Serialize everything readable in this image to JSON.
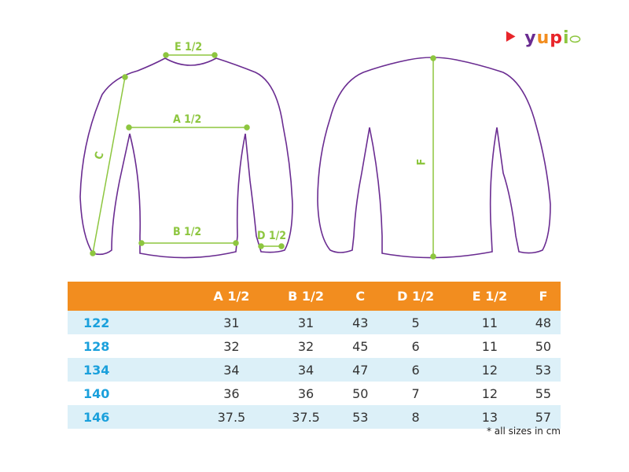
{
  "brand": {
    "logo_text": "yupi",
    "colors": {
      "outline": "#6a2c91",
      "measure": "#8dc63f",
      "header": "#f28d1f",
      "size": "#1aa0dc",
      "row_alt": "#dcf0f8"
    }
  },
  "diagram_labels": {
    "e": "E 1/2",
    "a": "A 1/2",
    "c": "C",
    "b": "B 1/2",
    "d": "D 1/2",
    "f": "F"
  },
  "table": {
    "headers": [
      "",
      "A 1/2",
      "B 1/2",
      "C",
      "D 1/2",
      "E 1/2",
      "F"
    ],
    "rows": [
      {
        "size": "122",
        "values": [
          "31",
          "31",
          "43",
          "5",
          "11",
          "48"
        ]
      },
      {
        "size": "128",
        "values": [
          "32",
          "32",
          "45",
          "6",
          "11",
          "50"
        ]
      },
      {
        "size": "134",
        "values": [
          "34",
          "34",
          "47",
          "6",
          "12",
          "53"
        ]
      },
      {
        "size": "140",
        "values": [
          "36",
          "36",
          "50",
          "7",
          "12",
          "55"
        ]
      },
      {
        "size": "146",
        "values": [
          "37.5",
          "37.5",
          "53",
          "8",
          "13",
          "57"
        ]
      }
    ]
  },
  "note": "* all sizes in cm"
}
